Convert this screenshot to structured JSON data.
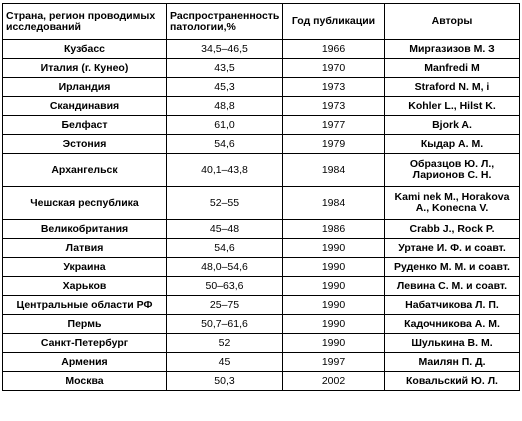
{
  "table": {
    "headers": [
      "Страна, регион проводимых исследований",
      "Распространенность патологии,%",
      "Год публикации",
      "Авторы"
    ],
    "rows": [
      {
        "region": "Кузбасс",
        "prevalence": "34,5–46,5",
        "year": "1966",
        "authors": "Миргазизов М. З"
      },
      {
        "region": "Италия (г. Кунео)",
        "prevalence": "43,5",
        "year": "1970",
        "authors": "Manfredi M"
      },
      {
        "region": "Ирландия",
        "prevalence": "45,3",
        "year": "1973",
        "authors": "Straford N. M, i"
      },
      {
        "region": "Скандинавия",
        "prevalence": "48,8",
        "year": "1973",
        "authors": "Kohler L., Hilst K."
      },
      {
        "region": "Белфаст",
        "prevalence": "61,0",
        "year": "1977",
        "authors": "Bjork A."
      },
      {
        "region": "Эстония",
        "prevalence": "54,6",
        "year": "1979",
        "authors": "Кыдар А. М."
      },
      {
        "region": "Архангельск",
        "prevalence": "40,1–43,8",
        "year": "1984",
        "authors": "Образцов Ю. Л., Ларионов С. Н."
      },
      {
        "region": "Чешская республика",
        "prevalence": "52–55",
        "year": "1984",
        "authors": "Kami nek M., Horakova A., Konecna V."
      },
      {
        "region": "Великобритания",
        "prevalence": "45–48",
        "year": "1986",
        "authors": "Crabb J., Rock P."
      },
      {
        "region": "Латвия",
        "prevalence": "54,6",
        "year": "1990",
        "authors": "Уртане И. Ф. и соавт."
      },
      {
        "region": "Украина",
        "prevalence": "48,0–54,6",
        "year": "1990",
        "authors": "Руденко М. М. и соавт."
      },
      {
        "region": "Харьков",
        "prevalence": "50–63,6",
        "year": "1990",
        "authors": "Левина С. М. и соавт."
      },
      {
        "region": "Центральные области РФ",
        "prevalence": "25–75",
        "year": "1990",
        "authors": "Набатчикова Л. П."
      },
      {
        "region": "Пермь",
        "prevalence": "50,7–61,6",
        "year": "1990",
        "authors": "Кадочникова А. М."
      },
      {
        "region": "Санкт-Петербург",
        "prevalence": "52",
        "year": "1990",
        "authors": "Шулькина В. М."
      },
      {
        "region": "Армения",
        "prevalence": "45",
        "year": "1997",
        "authors": "Маилян П. Д."
      },
      {
        "region": "Москва",
        "prevalence": "50,3",
        "year": "2002",
        "authors": "Ковальский Ю. Л."
      }
    ]
  }
}
